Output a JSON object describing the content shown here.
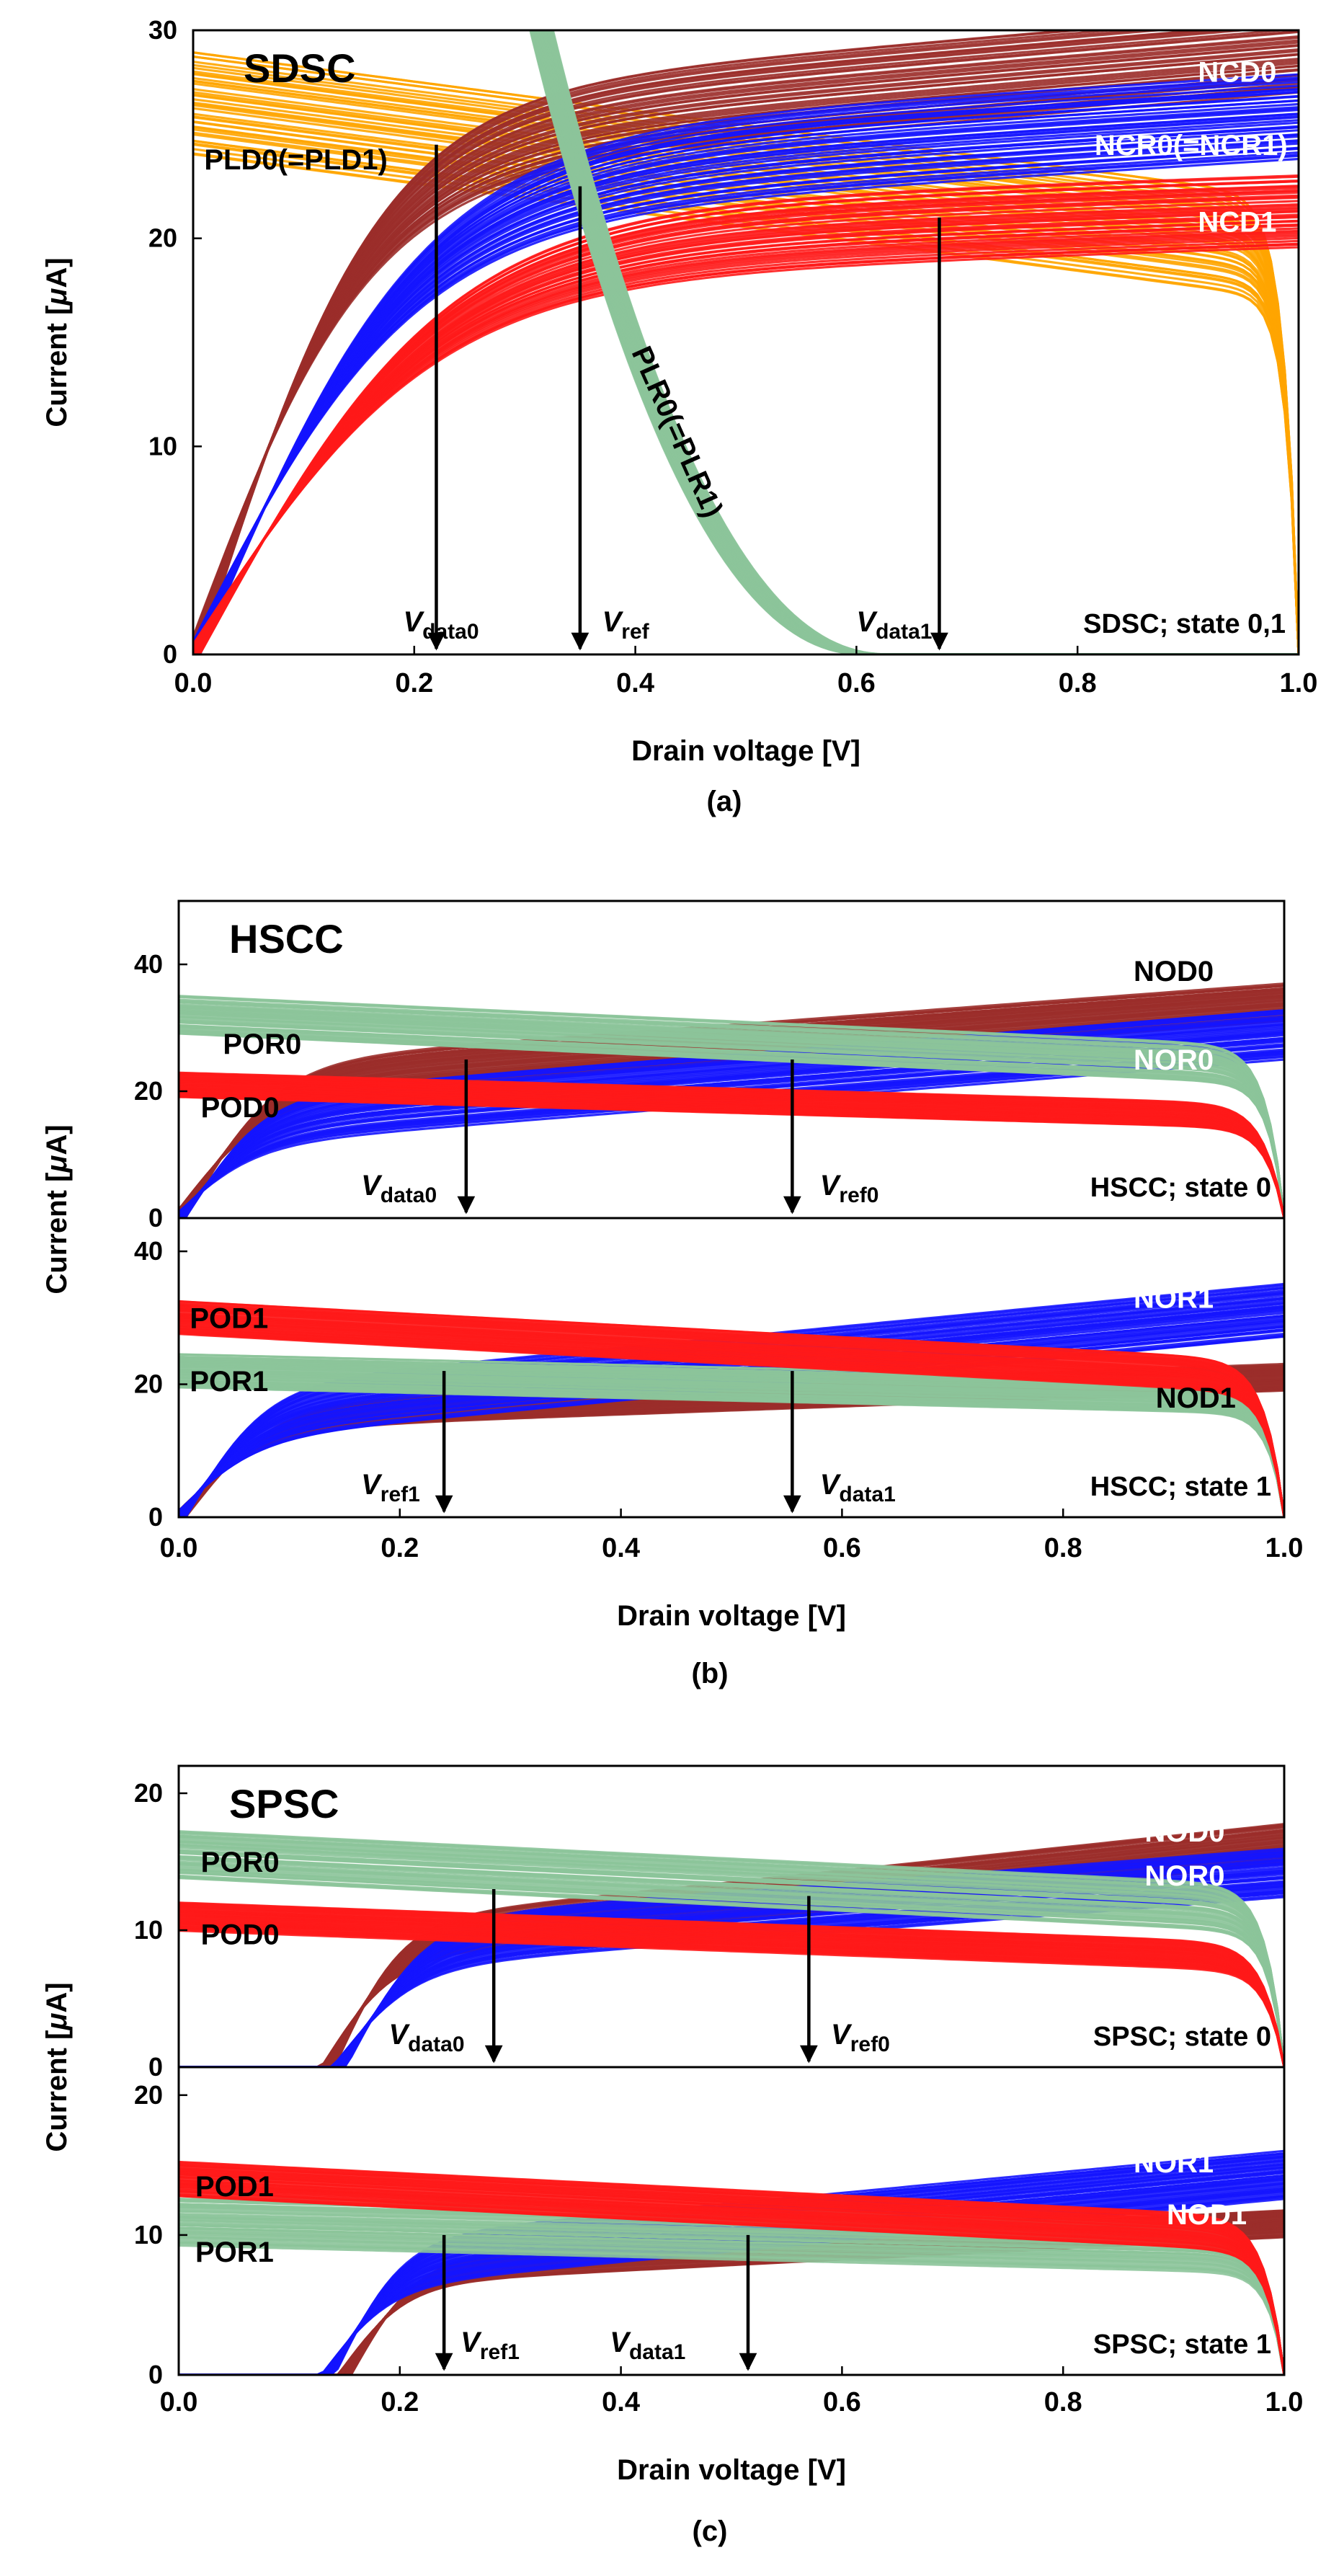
{
  "figure": {
    "x_label": "Drain voltage [V]",
    "y_label_prefix": "Current [",
    "y_label_mu": "μ",
    "y_label_suffix": "A]"
  },
  "colors": {
    "dark_red": "#9b2d2a",
    "red": "#ff1a1a",
    "blue": "#1414ff",
    "orange": "#ffa500",
    "green": "#8cc49a",
    "arrow": "#000000"
  },
  "chart_data": [
    {
      "id": "a",
      "type": "line",
      "panel_label": "(a)",
      "title": "SDSC",
      "xlim": [
        0,
        1
      ],
      "x_ticks": [
        "0.0",
        "0.2",
        "0.4",
        "0.6",
        "0.8",
        "1.0"
      ],
      "subplots": [
        {
          "ylim": [
            0,
            30
          ],
          "y_ticks": [
            {
              "v": 0,
              "t": "0"
            },
            {
              "v": 10,
              "t": "10"
            },
            {
              "v": 20,
              "t": "20"
            },
            {
              "v": 30,
              "t": "30"
            }
          ],
          "state_label": "SDSC; state 0,1",
          "series": [
            {
              "name": "PLD0(=PLD1)",
              "color": "orange",
              "kind": "pload",
              "i0": 26.5,
              "slope": 7,
              "vk": 0.95,
              "tau": 0.012,
              "spread": 5
            },
            {
              "name": "NCD0",
              "color": "dark_red",
              "kind": "ndrive",
              "vt": 0,
              "isat": 24.5,
              "slope": 4.5,
              "vs": 0.16,
              "spread": 4
            },
            {
              "name": "NCR0(=NCR1)",
              "color": "blue",
              "kind": "ndrive",
              "vt": 0,
              "isat": 22.5,
              "slope": 3.3,
              "vs": 0.2,
              "spread": 4
            },
            {
              "name": "NCD1",
              "color": "red",
              "kind": "ndrive",
              "vt": 0,
              "isat": 19.5,
              "slope": 1.8,
              "vs": 0.22,
              "spread": 3.5
            },
            {
              "name": "PLR0(=PLR1)",
              "color": "green",
              "kind": "steep",
              "a": 0.28,
              "b": 0.62,
              "ytop": 38.2,
              "spread": 0.08
            }
          ],
          "labels": [
            {
              "text": "NCD0",
              "x": 0.98,
              "y": 28.0,
              "color": "#ffffff",
              "anchor": "end"
            },
            {
              "text": "NCR0(=NCR1)",
              "x": 0.99,
              "y": 24.5,
              "color": "#ffffff",
              "anchor": "end"
            },
            {
              "text": "NCD1",
              "x": 0.98,
              "y": 20.8,
              "color": "#ffffff",
              "anchor": "end"
            },
            {
              "text": "PLD0(=PLD1)",
              "x": 0.01,
              "y": 23.8,
              "color": "#000000",
              "anchor": "start"
            },
            {
              "text": "PLR0(=PLR1)",
              "x": 0.43,
              "y": 11.0,
              "color": "#000000",
              "anchor": "middle",
              "rotate": 66
            }
          ],
          "arrows": [
            {
              "x": 0.22,
              "y_from": 24.5,
              "label_main": "V",
              "label_sub": "data0",
              "label_x": 0.19
            },
            {
              "x": 0.35,
              "y_from": 22.5,
              "label_main": "V",
              "label_sub": "ref",
              "label_x": 0.37
            },
            {
              "x": 0.675,
              "y_from": 21.0,
              "label_main": "V",
              "label_sub": "data1",
              "label_x": 0.6
            }
          ]
        }
      ]
    },
    {
      "id": "b",
      "type": "line",
      "panel_label": "(b)",
      "title": "HSCC",
      "xlim": [
        0,
        1
      ],
      "x_ticks": [
        "0.0",
        "0.2",
        "0.4",
        "0.6",
        "0.8",
        "1.0"
      ],
      "subplots": [
        {
          "ylim": [
            0,
            50
          ],
          "y_ticks": [
            {
              "v": 0,
              "t": "0"
            },
            {
              "v": 20,
              "t": "20"
            },
            {
              "v": 40,
              "t": "40"
            }
          ],
          "state_label": "HSCC; state 0",
          "series": [
            {
              "name": "NOD0",
              "color": "dark_red",
              "kind": "ndrive",
              "vt": 0,
              "isat": 21,
              "slope": 13,
              "vs": 0.08,
              "spread": 6
            },
            {
              "name": "NOR0",
              "color": "blue",
              "kind": "ndrive",
              "vt": 0,
              "isat": 15,
              "slope": 14,
              "vs": 0.07,
              "spread": 8
            },
            {
              "name": "POR0",
              "color": "green",
              "kind": "pload",
              "i0": 32,
              "slope": 8,
              "vk": 0.95,
              "tau": 0.015,
              "spread": 6
            },
            {
              "name": "POD0",
              "color": "red",
              "kind": "pload",
              "i0": 21,
              "slope": 5,
              "vk": 0.95,
              "tau": 0.017,
              "spread": 4
            }
          ],
          "labels": [
            {
              "text": "NOD0",
              "x": 0.9,
              "y": 39.0,
              "color": "#000000",
              "anchor": "middle"
            },
            {
              "text": "NOR0",
              "x": 0.9,
              "y": 25.0,
              "color": "#ffffff",
              "anchor": "middle"
            },
            {
              "text": "POR0",
              "x": 0.04,
              "y": 27.5,
              "color": "#000000",
              "anchor": "start"
            },
            {
              "text": "POD0",
              "x": 0.02,
              "y": 17.5,
              "color": "#000000",
              "anchor": "start"
            }
          ],
          "arrows": [
            {
              "x": 0.26,
              "y_from": 25,
              "label_main": "V",
              "label_sub": "data0",
              "label_x": 0.165
            },
            {
              "x": 0.555,
              "y_from": 25,
              "label_main": "V",
              "label_sub": "ref0",
              "label_x": 0.58
            }
          ]
        },
        {
          "ylim": [
            0,
            45
          ],
          "y_ticks": [
            {
              "v": 0,
              "t": "0"
            },
            {
              "v": 20,
              "t": "20"
            },
            {
              "v": 40,
              "t": "40"
            }
          ],
          "state_label": "HSCC; state 1",
          "series": [
            {
              "name": "NOD1",
              "color": "dark_red",
              "kind": "ndrive",
              "vt": 0,
              "isat": 15,
              "slope": 6,
              "vs": 0.08,
              "spread": 4
            },
            {
              "name": "NOR1",
              "color": "blue",
              "kind": "ndrive",
              "vt": 0,
              "isat": 15,
              "slope": 16,
              "vs": 0.07,
              "spread": 8
            },
            {
              "name": "POR1",
              "color": "green",
              "kind": "pload",
              "i0": 22,
              "slope": 4,
              "vk": 0.95,
              "tau": 0.015,
              "spread": 5
            },
            {
              "name": "POD1",
              "color": "red",
              "kind": "pload",
              "i0": 30,
              "slope": 9,
              "vk": 0.95,
              "tau": 0.016,
              "spread": 5
            }
          ],
          "labels": [
            {
              "text": "NOR1",
              "x": 0.9,
              "y": 33.0,
              "color": "#ffffff",
              "anchor": "middle"
            },
            {
              "text": "NOD1",
              "x": 0.92,
              "y": 18.0,
              "color": "#000000",
              "anchor": "middle"
            },
            {
              "text": "POD1",
              "x": 0.01,
              "y": 30.0,
              "color": "#000000",
              "anchor": "start"
            },
            {
              "text": "POR1",
              "x": 0.01,
              "y": 20.5,
              "color": "#000000",
              "anchor": "start"
            }
          ],
          "arrows": [
            {
              "x": 0.24,
              "y_from": 22,
              "label_main": "V",
              "label_sub": "ref1",
              "label_x": 0.165
            },
            {
              "x": 0.555,
              "y_from": 22,
              "label_main": "V",
              "label_sub": "data1",
              "label_x": 0.58
            }
          ]
        }
      ]
    },
    {
      "id": "c",
      "type": "line",
      "panel_label": "(c)",
      "title": "SPSC",
      "xlim": [
        0,
        1
      ],
      "x_ticks": [
        "0.0",
        "0.2",
        "0.4",
        "0.6",
        "0.8",
        "1.0"
      ],
      "subplots": [
        {
          "ylim": [
            0,
            22
          ],
          "y_ticks": [
            {
              "v": 0,
              "t": "0"
            },
            {
              "v": 10,
              "t": "10"
            },
            {
              "v": 20,
              "t": "20"
            }
          ],
          "state_label": "SPSC; state 0",
          "series": [
            {
              "name": "NOD0",
              "color": "dark_red",
              "kind": "ndrive",
              "vt": 0.135,
              "isat": 9,
              "slope": 8.5,
              "vs": 0.06,
              "spread": 3
            },
            {
              "name": "NOR0",
              "color": "blue",
              "kind": "ndrive",
              "vt": 0.145,
              "isat": 8.8,
              "slope": 6.3,
              "vs": 0.07,
              "spread": 3.5
            },
            {
              "name": "POR0",
              "color": "green",
              "kind": "pload",
              "i0": 15.5,
              "slope": 4,
              "vk": 0.95,
              "tau": 0.015,
              "spread": 3.5
            },
            {
              "name": "POD0",
              "color": "red",
              "kind": "pload",
              "i0": 11,
              "slope": 3,
              "vk": 0.95,
              "tau": 0.017,
              "spread": 2
            }
          ],
          "labels": [
            {
              "text": "NOD0",
              "x": 0.91,
              "y": 17.2,
              "color": "#ffffff",
              "anchor": "middle"
            },
            {
              "text": "NOR0",
              "x": 0.91,
              "y": 14.0,
              "color": "#ffffff",
              "anchor": "middle"
            },
            {
              "text": "POR0",
              "x": 0.02,
              "y": 15.0,
              "color": "#000000",
              "anchor": "start"
            },
            {
              "text": "POD0",
              "x": 0.02,
              "y": 9.7,
              "color": "#000000",
              "anchor": "start"
            }
          ],
          "arrows": [
            {
              "x": 0.285,
              "y_from": 13,
              "label_main": "V",
              "label_sub": "data0",
              "label_x": 0.19
            },
            {
              "x": 0.57,
              "y_from": 12.5,
              "label_main": "V",
              "label_sub": "ref0",
              "label_x": 0.59
            }
          ]
        },
        {
          "ylim": [
            0,
            22
          ],
          "y_ticks": [
            {
              "v": 0,
              "t": "0"
            },
            {
              "v": 10,
              "t": "10"
            },
            {
              "v": 20,
              "t": "20"
            }
          ],
          "state_label": "SPSC; state 1",
          "series": [
            {
              "name": "NOD1",
              "color": "dark_red",
              "kind": "ndrive",
              "vt": 0.15,
              "isat": 7.4,
              "slope": 4,
              "vs": 0.06,
              "spread": 2
            },
            {
              "name": "NOR1",
              "color": "blue",
              "kind": "ndrive",
              "vt": 0.135,
              "isat": 7.8,
              "slope": 7.5,
              "vs": 0.06,
              "spread": 3.5
            },
            {
              "name": "POR1",
              "color": "green",
              "kind": "pload",
              "i0": 11,
              "slope": 2,
              "vk": 0.95,
              "tau": 0.015,
              "spread": 3.5
            },
            {
              "name": "POD1",
              "color": "red",
              "kind": "pload",
              "i0": 14,
              "slope": 4,
              "vk": 0.95,
              "tau": 0.016,
              "spread": 2.5
            }
          ],
          "labels": [
            {
              "text": "NOR1",
              "x": 0.9,
              "y": 15.2,
              "color": "#ffffff",
              "anchor": "middle"
            },
            {
              "text": "NOD1",
              "x": 0.93,
              "y": 11.5,
              "color": "#ffffff",
              "anchor": "middle"
            },
            {
              "text": "POD1",
              "x": 0.015,
              "y": 13.5,
              "color": "#000000",
              "anchor": "start"
            },
            {
              "text": "POR1",
              "x": 0.015,
              "y": 8.8,
              "color": "#000000",
              "anchor": "start"
            }
          ],
          "arrows": [
            {
              "x": 0.24,
              "y_from": 10,
              "label_main": "V",
              "label_sub": "ref1",
              "label_x": 0.255
            },
            {
              "x": 0.515,
              "y_from": 10,
              "label_main": "V",
              "label_sub": "data1",
              "label_x": 0.39
            }
          ]
        }
      ]
    }
  ]
}
